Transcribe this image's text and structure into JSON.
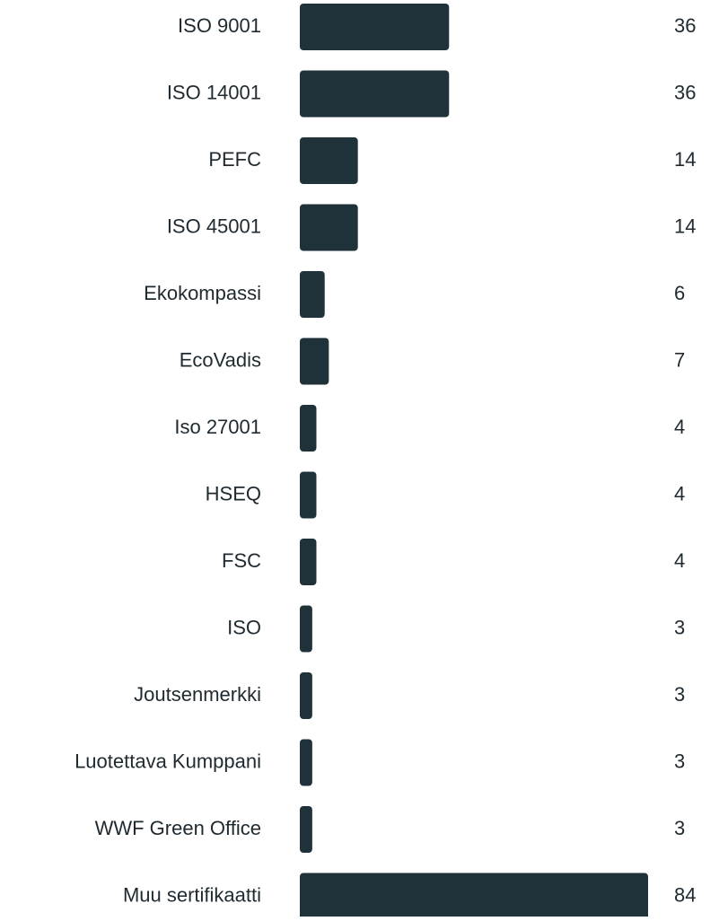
{
  "chart_data": {
    "type": "bar",
    "orientation": "horizontal",
    "categories": [
      "ISO 9001",
      "ISO 14001",
      "PEFC",
      "ISO 45001",
      "Ekokompassi",
      "EcoVadis",
      "Iso 27001",
      "HSEQ",
      "FSC",
      "ISO",
      "Joutsenmerkki",
      "Luotettava Kumppani",
      "WWF Green Office",
      "Muu sertifikaatti"
    ],
    "values": [
      36,
      36,
      14,
      14,
      6,
      7,
      4,
      4,
      4,
      3,
      3,
      3,
      3,
      84
    ],
    "color": "#1f3239"
  }
}
